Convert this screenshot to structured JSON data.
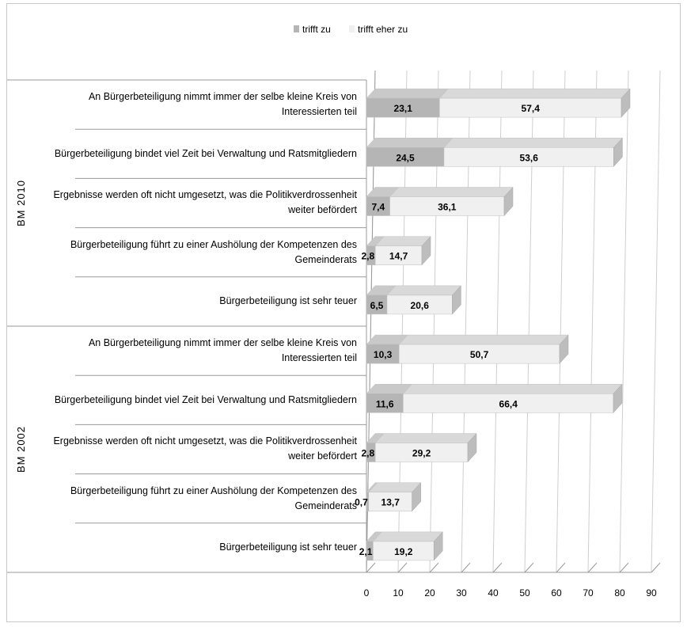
{
  "chart_data": {
    "type": "bar",
    "orientation": "horizontal",
    "stacked": true,
    "legend": {
      "position": "top",
      "items": [
        {
          "name": "trifft zu",
          "color": "#b5b5b5"
        },
        {
          "name": "trifft eher zu",
          "color": "#f0f0f0"
        }
      ]
    },
    "x_ticks": [
      "0",
      "10",
      "20",
      "30",
      "40",
      "50",
      "60",
      "70",
      "80",
      "90"
    ],
    "xlim": [
      0,
      90
    ],
    "groups": [
      {
        "name": "BM 2010",
        "rows": [
          {
            "label": "An Bürgerbeteiligung nimmt  immer der selbe kleine Kreis von Interessierten teil",
            "values": [
              23.1,
              57.4
            ],
            "labels": [
              "23,1",
              "57,4"
            ]
          },
          {
            "label": "Bürgerbeteiligung bindet viel Zeit bei Verwaltung  und Ratsmitgliedern",
            "values": [
              24.5,
              53.6
            ],
            "labels": [
              "24,5",
              "53,6"
            ]
          },
          {
            "label": "Ergebnisse werden oft nicht umgesetzt,  was  die Politikverdrossenheit weiter befördert",
            "values": [
              7.4,
              36.1
            ],
            "labels": [
              "7,4",
              "36,1"
            ]
          },
          {
            "label": "Bürgerbeteiligung führt zu einer Aushölung der Kompetenzen des Gemeinderats",
            "values": [
              2.8,
              14.7
            ],
            "labels": [
              "2,8",
              "14,7"
            ]
          },
          {
            "label": "Bürgerbeteiligung ist sehr teuer",
            "values": [
              6.5,
              20.6
            ],
            "labels": [
              "6,5",
              "20,6"
            ]
          }
        ]
      },
      {
        "name": "BM 2002",
        "rows": [
          {
            "label": "An Bürgerbeteiligung nimmt  immer der selbe kleine Kreis von Interessierten teil",
            "values": [
              10.3,
              50.7
            ],
            "labels": [
              "10,3",
              "50,7"
            ]
          },
          {
            "label": "Bürgerbeteiligung bindet viel Zeit bei Verwaltung  und Ratsmitgliedern",
            "values": [
              11.6,
              66.4
            ],
            "labels": [
              "11,6",
              "66,4"
            ]
          },
          {
            "label": "Ergebnisse werden oft nicht umgesetzt,  was  die Politikverdrossenheit weiter befördert",
            "values": [
              2.8,
              29.2
            ],
            "labels": [
              "2,8",
              "29,2"
            ]
          },
          {
            "label": "Bürgerbeteiligung führt zu einer Aushölung der Kompetenzen des Gemeinderats",
            "values": [
              0.7,
              13.7
            ],
            "labels": [
              "0,7",
              "13,7"
            ]
          },
          {
            "label": "Bürgerbeteiligung ist sehr teuer",
            "values": [
              2.1,
              19.2
            ],
            "labels": [
              "2,1",
              "19,2"
            ]
          }
        ]
      }
    ]
  }
}
